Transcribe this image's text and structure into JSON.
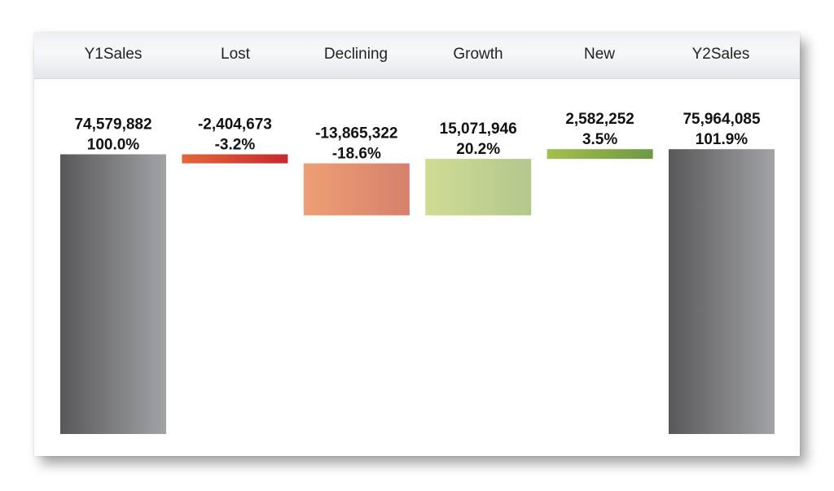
{
  "chart_data": {
    "type": "bar",
    "subtype": "waterfall",
    "categories": [
      "Y1Sales",
      "Lost",
      "Declining",
      "Growth",
      "New",
      "Y2Sales"
    ],
    "values": [
      74579882,
      -2404673,
      -13865322,
      15071946,
      2582252,
      75964085
    ],
    "value_labels": [
      "74,579,882",
      "-2,404,673",
      "-13,865,322",
      "15,071,946",
      "2,582,252",
      "75,964,085"
    ],
    "percent_labels": [
      "100.0%",
      "-3.2%",
      "-18.6%",
      "20.2%",
      "3.5%",
      "101.9%"
    ],
    "bar_kinds": [
      "total",
      "delta",
      "delta",
      "delta",
      "delta",
      "total"
    ],
    "grid": false,
    "legend": "none",
    "colors": {
      "total": [
        "#58585a",
        "#a2a3a6"
      ],
      "Lost": [
        "#e2683a",
        "#c8282f"
      ],
      "Declining": [
        "#ee9f74",
        "#d6806c"
      ],
      "Growth": [
        "#cfdc94",
        "#b3c78d"
      ],
      "New": [
        "#a3c04c",
        "#6e9845"
      ]
    }
  }
}
